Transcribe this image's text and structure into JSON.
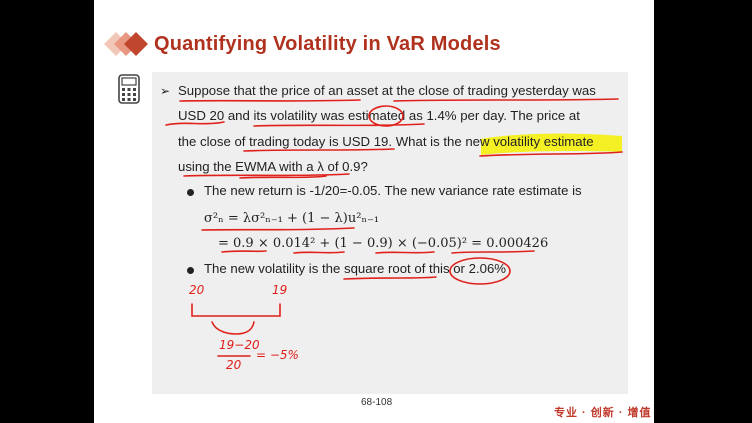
{
  "slide": {
    "title": "Quantifying Volatility in VaR Models",
    "question": {
      "line1": "Suppose that the price of an asset at the close of trading yesterday was",
      "line2": "USD 20 and its volatility was estimated as 1.4% per day. The price at",
      "line3": "the close of trading today is USD 19. What is the new volatility estimate",
      "line4": "using the EWMA with a λ of 0.9?"
    },
    "sub1": "The new return is -1/20=-0.05. The new variance rate estimate is",
    "formula1": "σ²ₙ = λσ²ₙ₋₁ + (1 − λ)u²ₙ₋₁",
    "formula2": "= 0.9 × 0.014² + (1 − 0.9) × (−0.05)² = 0.000426",
    "sub2": "The new volatility is the square root of this or 2.06%",
    "handwriting": {
      "a": "20",
      "b": "19",
      "frac_num": "19−20",
      "frac_den": "20",
      "result": "= −5%"
    },
    "page_number": "68-108",
    "brand": "专业 · 创新 · 增值"
  },
  "colors": {
    "title": "#b0321e",
    "ink": "#e0201a",
    "highlight": "#f5f000",
    "panel": "#efefef"
  },
  "icons": [
    "diamond-logo-icon",
    "calculator-icon",
    "arrow-bullet-icon"
  ]
}
